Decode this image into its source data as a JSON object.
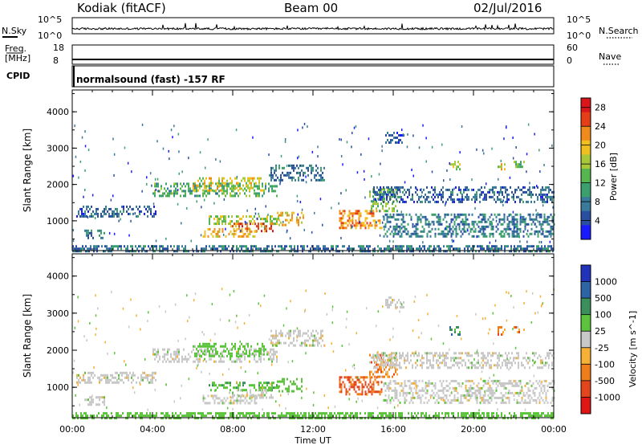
{
  "header": {
    "radar": "Kodiak (fitACF)",
    "beam": "Beam 00",
    "date": "02/Jul/2016"
  },
  "noise_panel": {
    "left_label": "N.Sky",
    "right_label": "N.Search",
    "left_ticks": [
      "10^5",
      "10^0"
    ],
    "right_ticks": [
      "10^5",
      "10^0"
    ]
  },
  "freq_panel": {
    "left_label_1": "Freq.",
    "left_label_2": "[MHz]",
    "right_label": "Nave",
    "left_ticks": [
      "18",
      "8"
    ],
    "right_ticks": [
      "60",
      "0"
    ]
  },
  "cpid_panel": {
    "label": "CPID",
    "text": "normalsound (fast) -157 RF"
  },
  "colors": {
    "power": [
      "#1a1aff",
      "#2a4fa0",
      "#3a7a9a",
      "#3b9f6e",
      "#56b54f",
      "#a8c83a",
      "#f0c020",
      "#f08a1a",
      "#e63e16",
      "#d9161a"
    ],
    "velocity": [
      "#2233bb",
      "#2e63a6",
      "#3a8f5a",
      "#5cc33c",
      "#c8c8c8",
      "#f5b035",
      "#ef7d1a",
      "#e3451c",
      "#e01515"
    ]
  },
  "chart_data": [
    {
      "type": "heatmap",
      "quantity": "Power",
      "xlabel": "",
      "ylabel": "Slant Range [km]",
      "x_ticks": [
        "00:00",
        "04:00",
        "08:00",
        "12:00",
        "16:00",
        "20:00",
        "00:00"
      ],
      "y_ticks": [
        "1000",
        "2000",
        "3000",
        "4000"
      ],
      "xlim_hours": [
        0,
        24
      ],
      "ylim_km": [
        180,
        4600
      ],
      "colorbar": {
        "label": "Power [dB]",
        "ticks": [
          "4",
          "8",
          "12",
          "16",
          "20",
          "24",
          "28"
        ],
        "range": [
          0,
          30
        ]
      },
      "echo_regions": [
        {
          "t0": 0.2,
          "t1": 4.2,
          "r0": 1150,
          "r1": 1420,
          "p": 6
        },
        {
          "t0": 0.6,
          "t1": 1.6,
          "r0": 500,
          "r1": 760,
          "p": 8
        },
        {
          "t0": 4.0,
          "t1": 10.2,
          "r0": 1700,
          "r1": 2050,
          "p": 12
        },
        {
          "t0": 6.0,
          "t1": 9.6,
          "r0": 1850,
          "r1": 2200,
          "p": 18
        },
        {
          "t0": 9.8,
          "t1": 12.6,
          "r0": 2100,
          "r1": 2550,
          "p": 7
        },
        {
          "t0": 6.8,
          "t1": 10.3,
          "r0": 950,
          "r1": 1150,
          "p": 16
        },
        {
          "t0": 6.5,
          "t1": 9.2,
          "r0": 560,
          "r1": 800,
          "p": 20
        },
        {
          "t0": 7.8,
          "t1": 10.0,
          "r0": 750,
          "r1": 950,
          "p": 24
        },
        {
          "t0": 10.2,
          "t1": 11.5,
          "r0": 900,
          "r1": 1250,
          "p": 20
        },
        {
          "t0": 13.3,
          "t1": 15.4,
          "r0": 800,
          "r1": 1300,
          "p": 22
        },
        {
          "t0": 14.8,
          "t1": 16.2,
          "r0": 1250,
          "r1": 1900,
          "p": 14
        },
        {
          "t0": 15.0,
          "t1": 24.0,
          "r0": 1500,
          "r1": 1950,
          "p": 6
        },
        {
          "t0": 15.5,
          "t1": 24.0,
          "r0": 600,
          "r1": 1200,
          "p": 8
        },
        {
          "t0": 15.6,
          "t1": 16.5,
          "r0": 3150,
          "r1": 3450,
          "p": 5
        },
        {
          "t0": 18.8,
          "t1": 19.3,
          "r0": 2400,
          "r1": 2650,
          "p": 16
        },
        {
          "t0": 21.2,
          "t1": 21.6,
          "r0": 2450,
          "r1": 2650,
          "p": 18
        },
        {
          "t0": 22.0,
          "t1": 22.5,
          "r0": 2500,
          "r1": 2650,
          "p": 14
        },
        {
          "t0": 0.0,
          "t1": 24.0,
          "r0": 180,
          "r1": 330,
          "p": 7
        }
      ]
    },
    {
      "type": "heatmap",
      "quantity": "Velocity",
      "xlabel": "Time UT",
      "ylabel": "Slant Range [km]",
      "x_ticks": [
        "00:00",
        "04:00",
        "08:00",
        "12:00",
        "16:00",
        "20:00",
        "00:00"
      ],
      "y_ticks": [
        "1000",
        "2000",
        "3000",
        "4000"
      ],
      "xlim_hours": [
        0,
        24
      ],
      "ylim_km": [
        180,
        4600
      ],
      "colorbar": {
        "label": "Velocity [m s^-1]",
        "ticks": [
          "1000",
          "500",
          "100",
          "25",
          "-25",
          "-100",
          "-500",
          "-1000"
        ]
      },
      "echo_regions": [
        {
          "t0": 0.2,
          "t1": 4.2,
          "r0": 1150,
          "r1": 1420,
          "v": 0
        },
        {
          "t0": 0.6,
          "t1": 1.6,
          "r0": 500,
          "r1": 760,
          "v": 0
        },
        {
          "t0": 4.0,
          "t1": 10.2,
          "r0": 1700,
          "r1": 2050,
          "v": 0
        },
        {
          "t0": 6.0,
          "t1": 9.6,
          "r0": 1850,
          "r1": 2200,
          "v": 60
        },
        {
          "t0": 9.8,
          "t1": 12.6,
          "r0": 2100,
          "r1": 2550,
          "v": 0
        },
        {
          "t0": 6.8,
          "t1": 10.3,
          "r0": 950,
          "r1": 1150,
          "v": 80
        },
        {
          "t0": 6.5,
          "t1": 9.2,
          "r0": 560,
          "r1": 800,
          "v": 0
        },
        {
          "t0": 7.8,
          "t1": 10.0,
          "r0": 750,
          "r1": 950,
          "v": 0
        },
        {
          "t0": 10.2,
          "t1": 11.5,
          "r0": 900,
          "r1": 1250,
          "v": 70
        },
        {
          "t0": 13.3,
          "t1": 15.4,
          "r0": 800,
          "r1": 1300,
          "v": -300
        },
        {
          "t0": 14.8,
          "t1": 16.2,
          "r0": 1250,
          "r1": 1900,
          "v": -150
        },
        {
          "t0": 15.0,
          "t1": 24.0,
          "r0": 1500,
          "r1": 1950,
          "v": 0
        },
        {
          "t0": 15.5,
          "t1": 24.0,
          "r0": 600,
          "r1": 1200,
          "v": 0
        },
        {
          "t0": 15.6,
          "t1": 16.5,
          "r0": 3150,
          "r1": 3450,
          "v": 0
        },
        {
          "t0": 18.8,
          "t1": 19.3,
          "r0": 2400,
          "r1": 2650,
          "v": 200
        },
        {
          "t0": 21.2,
          "t1": 21.6,
          "r0": 2450,
          "r1": 2650,
          "v": -200
        },
        {
          "t0": 22.0,
          "t1": 22.5,
          "r0": 2500,
          "r1": 2650,
          "v": -150
        },
        {
          "t0": 0.0,
          "t1": 24.0,
          "r0": 180,
          "r1": 330,
          "v": 60
        }
      ]
    }
  ]
}
